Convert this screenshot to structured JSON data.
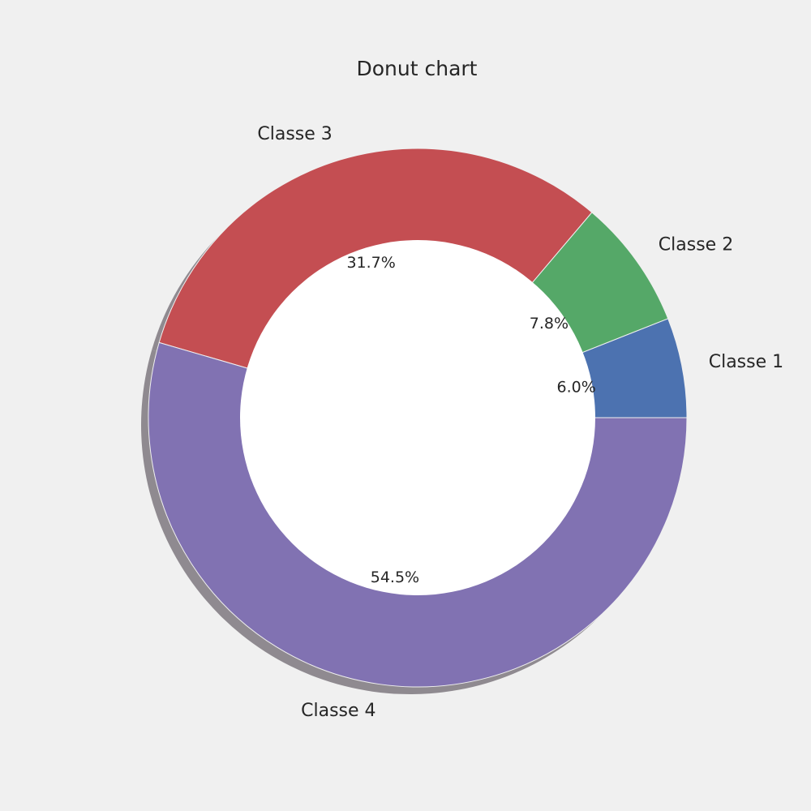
{
  "chart_data": {
    "type": "pie",
    "style": "donut",
    "title": "Donut chart",
    "categories": [
      "Classe 1",
      "Classe 2",
      "Classe 3",
      "Classe 4"
    ],
    "values": [
      6.0,
      7.8,
      31.7,
      54.5
    ],
    "percent_labels": [
      "6.0%",
      "7.8%",
      "31.7%",
      "54.5%"
    ],
    "colors": [
      "#4c72b0",
      "#55a868",
      "#c44e52",
      "#8172b2"
    ],
    "start_angle_deg": 0,
    "direction": "counterclockwise",
    "shadow": true,
    "background": "#f0f0f0",
    "center_color": "#ffffff"
  }
}
